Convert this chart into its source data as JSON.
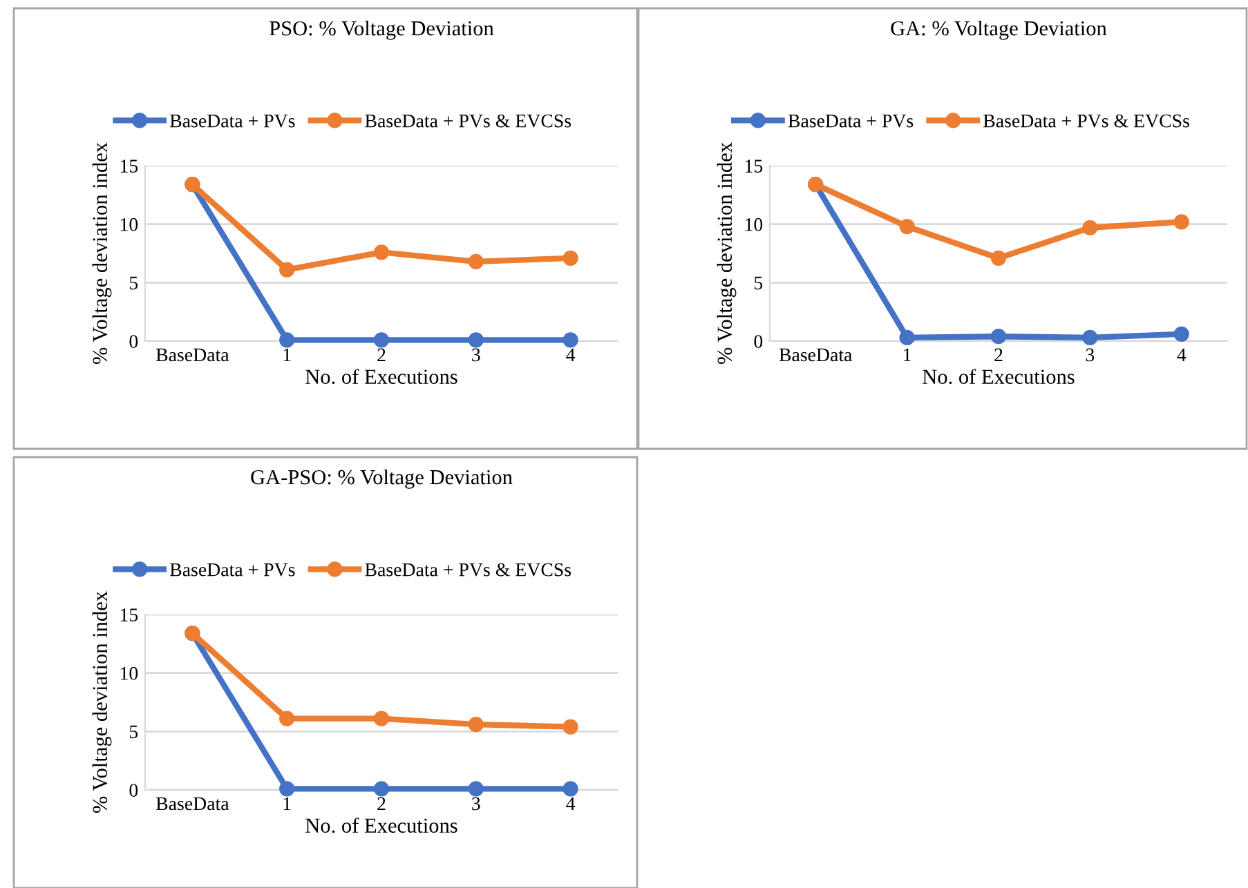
{
  "chart_data": [
    {
      "type": "line",
      "title": "PSO: % Voltage Deviation",
      "xlabel": "No. of Executions",
      "ylabel": "% Voltage deviation index",
      "categories": [
        "BaseData",
        "1",
        "2",
        "3",
        "4"
      ],
      "series": [
        {
          "name": "BaseData + PVs",
          "color": "#4472c4",
          "values": [
            13.4,
            0.1,
            0.1,
            0.1,
            0.1
          ]
        },
        {
          "name": "BaseData + PVs & EVCSs",
          "color": "#ed7d31",
          "values": [
            13.4,
            6.1,
            7.6,
            6.8,
            7.1
          ]
        }
      ],
      "ylim": [
        0,
        15
      ],
      "yticks": [
        0,
        5,
        10,
        15
      ],
      "grid": "y",
      "legend": "top",
      "marker": "circle"
    },
    {
      "type": "line",
      "title": "GA: % Voltage Deviation",
      "xlabel": "No. of Executions",
      "ylabel": "% Voltage deviation index",
      "categories": [
        "BaseData",
        "1",
        "2",
        "3",
        "4"
      ],
      "series": [
        {
          "name": "BaseData + PVs",
          "color": "#4472c4",
          "values": [
            13.4,
            0.3,
            0.4,
            0.3,
            0.6
          ]
        },
        {
          "name": "BaseData + PVs & EVCSs",
          "color": "#ed7d31",
          "values": [
            13.4,
            9.8,
            7.1,
            9.7,
            10.2
          ]
        }
      ],
      "ylim": [
        0,
        15
      ],
      "yticks": [
        0,
        5,
        10,
        15
      ],
      "grid": "y",
      "legend": "top",
      "marker": "circle"
    },
    {
      "type": "line",
      "title": "GA-PSO: % Voltage Deviation",
      "xlabel": "No. of Executions",
      "ylabel": "% Voltage deviation index",
      "categories": [
        "BaseData",
        "1",
        "2",
        "3",
        "4"
      ],
      "series": [
        {
          "name": "BaseData + PVs",
          "color": "#4472c4",
          "values": [
            13.4,
            0.1,
            0.1,
            0.1,
            0.1
          ]
        },
        {
          "name": "BaseData + PVs & EVCSs",
          "color": "#ed7d31",
          "values": [
            13.4,
            6.1,
            6.1,
            5.6,
            5.4
          ]
        }
      ],
      "ylim": [
        0,
        15
      ],
      "yticks": [
        0,
        5,
        10,
        15
      ],
      "grid": "y",
      "legend": "top",
      "marker": "circle"
    }
  ]
}
